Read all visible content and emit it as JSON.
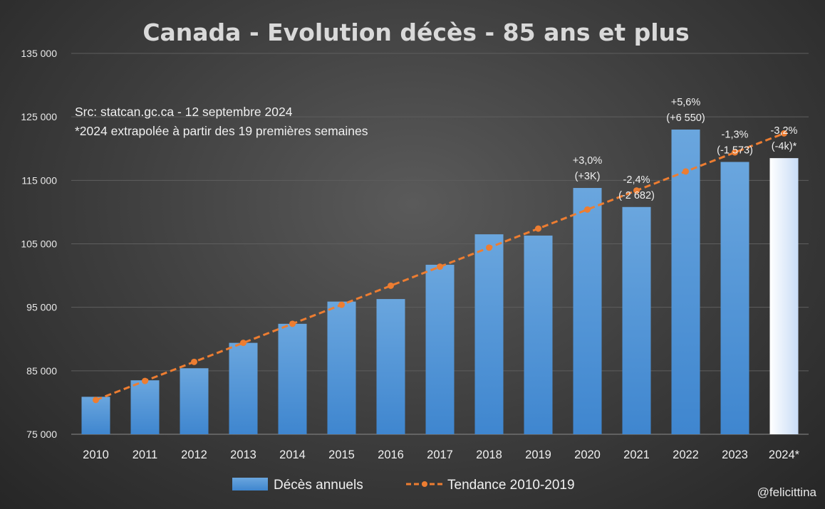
{
  "chart_data": {
    "type": "bar",
    "title": "Canada - Evolution décès - 85 ans et plus",
    "categories": [
      "2010",
      "2011",
      "2012",
      "2013",
      "2014",
      "2015",
      "2016",
      "2017",
      "2018",
      "2019",
      "2020",
      "2021",
      "2022",
      "2023",
      "2024*"
    ],
    "series": [
      {
        "name": "Décès annuels",
        "kind": "bar",
        "values": [
          80900,
          83500,
          85400,
          89400,
          92400,
          95900,
          96300,
          101700,
          106500,
          106300,
          113800,
          110800,
          123000,
          117900,
          118500
        ],
        "color": "#5b9bd5",
        "highlight_last_color": "#dbe8fb"
      },
      {
        "name": "Tendance 2010-2019",
        "kind": "line",
        "style": "dashed",
        "values": [
          80400,
          83400,
          86400,
          89400,
          92400,
          95400,
          98400,
          101400,
          104400,
          107400,
          110400,
          113400,
          116400,
          119400,
          122400
        ],
        "color": "#ed7d31"
      }
    ],
    "ylim": [
      75000,
      135000
    ],
    "yticks": [
      75000,
      85000,
      95000,
      105000,
      115000,
      125000,
      135000
    ],
    "ytick_labels": [
      "75 000",
      "85 000",
      "95 000",
      "105 000",
      "115 000",
      "125 000",
      "135 000"
    ],
    "xlabel": "",
    "ylabel": "",
    "grid": true,
    "legend_position": "bottom",
    "annotations": [
      {
        "category": "2020",
        "line1": "+3,0%",
        "line2": "(+3K)"
      },
      {
        "category": "2021",
        "line1": "-2,4%",
        "line2": "(-2 682)"
      },
      {
        "category": "2022",
        "line1": "+5,6%",
        "line2": "(+6 550)"
      },
      {
        "category": "2023",
        "line1": "-1,3%",
        "line2": "(-1 573)"
      },
      {
        "category": "2024*",
        "line1": "-3,2%",
        "line2": "(-4k)*"
      }
    ],
    "notes": [
      "Src: statcan.gc.ca - 12 septembre 2024",
      "*2024 extrapolée à partir des 19 premières semaines"
    ]
  },
  "credit": "@felicittina"
}
